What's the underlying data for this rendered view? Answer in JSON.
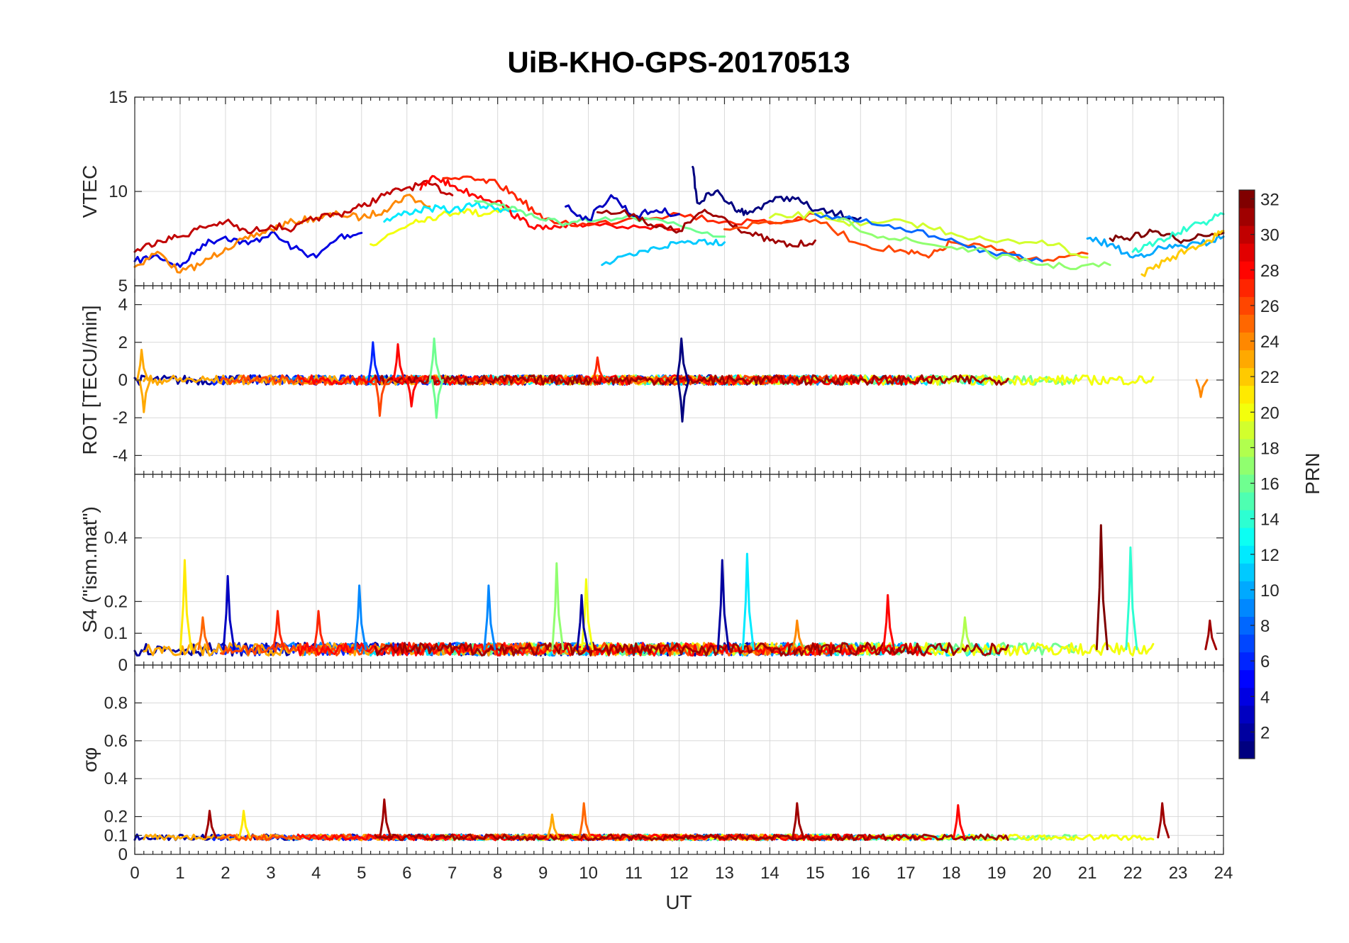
{
  "chart_data": {
    "title": "UiB-KHO-GPS-20170513",
    "xlabel": "UT",
    "xlim": [
      0,
      24
    ],
    "xticks": [
      "0",
      "1",
      "2",
      "3",
      "4",
      "5",
      "6",
      "7",
      "8",
      "9",
      "10",
      "11",
      "12",
      "13",
      "14",
      "15",
      "16",
      "17",
      "18",
      "19",
      "20",
      "21",
      "22",
      "23",
      "24"
    ],
    "colorbar": {
      "label": "PRN",
      "range": [
        1,
        32
      ],
      "ticks": [
        "2",
        "4",
        "6",
        "8",
        "10",
        "12",
        "14",
        "16",
        "18",
        "20",
        "22",
        "24",
        "26",
        "28",
        "30",
        "32"
      ],
      "colormap": "jet"
    },
    "panels": [
      {
        "type": "line",
        "ylabel": "VTEC",
        "ylim": [
          5,
          15
        ],
        "yticks": [
          "5",
          "10",
          "15"
        ],
        "grid": true,
        "series": [
          {
            "prn": 4,
            "x": [
              0,
              0.5,
              1,
              1.5,
              2,
              2.5,
              3,
              3.5,
              4,
              4.5,
              5
            ],
            "y": [
              6.3,
              6.6,
              6.0,
              7.2,
              7.6,
              7.2,
              7.8,
              7.0,
              6.5,
              7.6,
              7.8
            ]
          },
          {
            "prn": 24,
            "x": [
              0,
              0.5,
              1,
              1.5,
              2,
              2.5,
              3,
              3.5,
              4,
              4.5,
              5,
              5.5,
              6,
              6.5
            ],
            "y": [
              6.0,
              6.8,
              5.7,
              6.2,
              7.0,
              7.5,
              8.0,
              8.4,
              8.6,
              8.8,
              8.6,
              9.0,
              9.8,
              9.2
            ]
          },
          {
            "prn": 30,
            "x": [
              0,
              0.5,
              1,
              1.5,
              2,
              2.5,
              3,
              3.5,
              4,
              4.5,
              5,
              5.5,
              6,
              6.5,
              7
            ],
            "y": [
              6.8,
              7.4,
              7.6,
              8.1,
              8.4,
              7.8,
              8.2,
              8.0,
              8.6,
              8.8,
              9.2,
              9.8,
              10.2,
              10.4,
              9.8
            ]
          },
          {
            "prn": 20,
            "x": [
              5.2,
              5.7,
              6.2,
              6.7,
              7.2,
              7.7,
              8.2
            ],
            "y": [
              7.2,
              7.8,
              8.5,
              8.7,
              9.0,
              8.8,
              9.2
            ]
          },
          {
            "prn": 12,
            "x": [
              5.5,
              6,
              6.5,
              7,
              7.5,
              8,
              8.5
            ],
            "y": [
              8.4,
              8.9,
              9.1,
              9.0,
              9.3,
              9.1,
              9.0
            ]
          },
          {
            "prn": 28,
            "x": [
              6.3,
              6.6,
              7,
              7.5,
              8,
              8.5,
              9,
              9.5,
              10,
              11,
              12
            ],
            "y": [
              10.1,
              10.8,
              10.3,
              9.8,
              9.5,
              8.5,
              8.0,
              8.1,
              8.3,
              8.2,
              8.0
            ]
          },
          {
            "prn": 27,
            "x": [
              6.8,
              7.5,
              8,
              8.5,
              9,
              10,
              11,
              12,
              13,
              14,
              15
            ],
            "y": [
              10.7,
              10.6,
              10.4,
              9.6,
              8.5,
              8.2,
              8.6,
              8.8,
              8.4,
              8.3,
              8.8
            ]
          },
          {
            "prn": 16,
            "x": [
              7.5,
              8,
              8.5,
              9,
              9.5,
              10,
              11,
              12,
              13
            ],
            "y": [
              9.5,
              9.3,
              9.0,
              8.5,
              8.3,
              8.4,
              8.6,
              8.2,
              7.6
            ]
          },
          {
            "prn": 3,
            "x": [
              9.5,
              10,
              10.5,
              11,
              11.5,
              12
            ],
            "y": [
              9.2,
              8.5,
              9.8,
              8.7,
              9.0,
              8.8
            ]
          },
          {
            "prn": 31,
            "x": [
              10.2,
              11,
              11.5,
              12,
              12.5,
              13,
              13.5,
              14,
              14.5,
              15
            ],
            "y": [
              8.9,
              8.8,
              8.1,
              7.9,
              8.9,
              8.6,
              7.8,
              7.4,
              7.1,
              7.4
            ]
          },
          {
            "prn": 1,
            "x": [
              12.3,
              12.4,
              12.8,
              13.2,
              13.5,
              14,
              14.5,
              15,
              15.5,
              16
            ],
            "y": [
              11.3,
              9.4,
              10.0,
              9.2,
              8.8,
              9.5,
              9.7,
              9.0,
              8.8,
              8.6
            ]
          },
          {
            "prn": 11,
            "x": [
              10.3,
              11,
              11.5,
              12,
              12.5,
              13
            ],
            "y": [
              6.1,
              6.6,
              7.0,
              7.3,
              7.4,
              7.3
            ]
          },
          {
            "prn": 26,
            "x": [
              13,
              14,
              15,
              16,
              17,
              17.5,
              18,
              19,
              20,
              21
            ],
            "y": [
              8.0,
              8.4,
              8.5,
              7.2,
              6.8,
              6.5,
              7.3,
              6.9,
              6.3,
              6.7
            ]
          },
          {
            "prn": 19,
            "x": [
              14,
              15,
              16,
              17,
              18,
              19,
              20,
              21
            ],
            "y": [
              8.6,
              8.8,
              8.2,
              8.4,
              7.8,
              7.3,
              7.4,
              6.5
            ]
          },
          {
            "prn": 8,
            "x": [
              15,
              16,
              17,
              18,
              19,
              20
            ],
            "y": [
              8.8,
              8.4,
              7.9,
              7.5,
              6.6,
              6.3
            ]
          },
          {
            "prn": 17,
            "x": [
              15.5,
              16.5,
              17.5,
              18.5,
              19.5,
              20.5,
              21.5
            ],
            "y": [
              8.5,
              7.6,
              7.2,
              6.9,
              6.3,
              6.0,
              6.1
            ]
          },
          {
            "prn": 10,
            "x": [
              21,
              21.5,
              22,
              22.5,
              23,
              23.5,
              24
            ],
            "y": [
              7.5,
              7.2,
              6.5,
              6.9,
              7.1,
              7.2,
              7.6
            ]
          },
          {
            "prn": 32,
            "x": [
              21.5,
              22,
              22.5,
              23,
              23.5,
              24
            ],
            "y": [
              7.5,
              7.6,
              7.9,
              7.4,
              7.7,
              7.8
            ]
          },
          {
            "prn": 14,
            "x": [
              22,
              22.5,
              23,
              23.5,
              24
            ],
            "y": [
              6.8,
              7.3,
              7.8,
              8.3,
              8.8
            ]
          },
          {
            "prn": 22,
            "x": [
              22.2,
              22.7,
              23.2,
              23.7,
              24
            ],
            "y": [
              5.6,
              6.3,
              6.9,
              7.4,
              7.9
            ]
          }
        ]
      },
      {
        "type": "line",
        "ylabel": "ROT [TECU/min]",
        "ylim": [
          -5,
          5
        ],
        "yticks": [
          "-4",
          "-2",
          "0",
          "2",
          "4"
        ],
        "grid": true,
        "spikes": [
          {
            "prn": 23,
            "x": 0.15,
            "y": 1.6
          },
          {
            "prn": 23,
            "x": 0.2,
            "y": -1.7
          },
          {
            "prn": 6,
            "x": 5.25,
            "y": 2.0
          },
          {
            "prn": 26,
            "x": 5.4,
            "y": -1.9
          },
          {
            "prn": 28,
            "x": 5.8,
            "y": 1.9
          },
          {
            "prn": 16,
            "x": 6.6,
            "y": 2.2
          },
          {
            "prn": 16,
            "x": 6.65,
            "y": -2.0
          },
          {
            "prn": 28,
            "x": 6.1,
            "y": -1.4
          },
          {
            "prn": 1,
            "x": 12.05,
            "y": 2.2
          },
          {
            "prn": 1,
            "x": 12.07,
            "y": -2.2
          },
          {
            "prn": 27,
            "x": 10.2,
            "y": 1.2
          },
          {
            "prn": 24,
            "x": 23.5,
            "y": -0.9
          }
        ]
      },
      {
        "type": "line",
        "ylabel": "S4 (\"ism.mat\")",
        "ylim": [
          0,
          0.6
        ],
        "yticks": [
          "0",
          "0.1",
          "0.2",
          "0.4"
        ],
        "grid": true,
        "spikes": [
          {
            "prn": 21,
            "x": 1.1,
            "y": 0.33
          },
          {
            "prn": 25,
            "x": 1.5,
            "y": 0.15
          },
          {
            "prn": 3,
            "x": 2.05,
            "y": 0.28
          },
          {
            "prn": 27,
            "x": 3.15,
            "y": 0.17
          },
          {
            "prn": 27,
            "x": 4.05,
            "y": 0.17
          },
          {
            "prn": 9,
            "x": 4.95,
            "y": 0.25
          },
          {
            "prn": 9,
            "x": 7.8,
            "y": 0.25
          },
          {
            "prn": 17,
            "x": 9.3,
            "y": 0.32
          },
          {
            "prn": 20,
            "x": 9.95,
            "y": 0.27
          },
          {
            "prn": 2,
            "x": 9.85,
            "y": 0.22
          },
          {
            "prn": 2,
            "x": 12.95,
            "y": 0.33
          },
          {
            "prn": 12,
            "x": 13.5,
            "y": 0.35
          },
          {
            "prn": 24,
            "x": 14.6,
            "y": 0.14
          },
          {
            "prn": 28,
            "x": 16.6,
            "y": 0.22
          },
          {
            "prn": 18,
            "x": 18.3,
            "y": 0.15
          },
          {
            "prn": 32,
            "x": 21.3,
            "y": 0.44
          },
          {
            "prn": 14,
            "x": 21.95,
            "y": 0.37
          },
          {
            "prn": 31,
            "x": 23.7,
            "y": 0.14
          }
        ]
      },
      {
        "type": "line",
        "ylabel": "σφ",
        "ylim": [
          0,
          1
        ],
        "yticks": [
          "0",
          "0.1",
          "0.2",
          "0.4",
          "0.6",
          "0.8"
        ],
        "grid": true,
        "spikes": [
          {
            "prn": 31,
            "x": 1.65,
            "y": 0.23
          },
          {
            "prn": 21,
            "x": 2.4,
            "y": 0.23
          },
          {
            "prn": 31,
            "x": 5.5,
            "y": 0.29
          },
          {
            "prn": 23,
            "x": 9.2,
            "y": 0.21
          },
          {
            "prn": 25,
            "x": 9.9,
            "y": 0.27
          },
          {
            "prn": 31,
            "x": 14.6,
            "y": 0.27
          },
          {
            "prn": 28,
            "x": 18.15,
            "y": 0.26
          },
          {
            "prn": 31,
            "x": 22.65,
            "y": 0.27
          }
        ]
      }
    ]
  }
}
